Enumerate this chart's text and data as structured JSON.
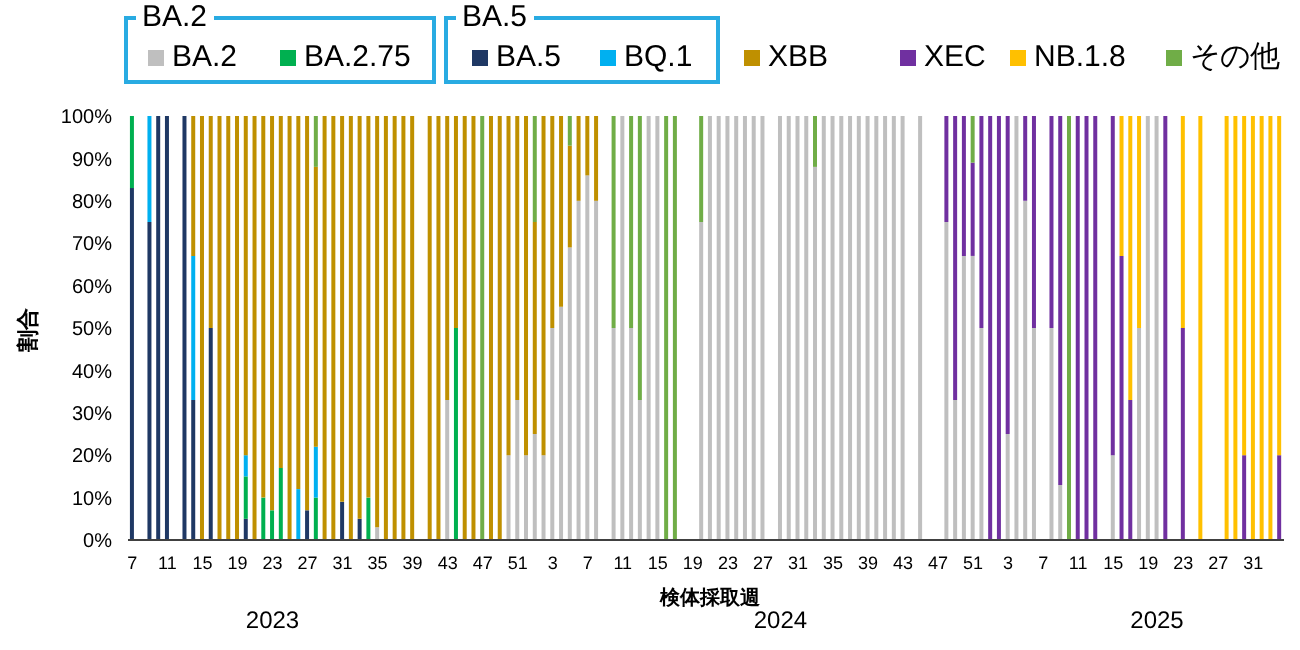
{
  "chart_data": {
    "type": "bar",
    "stacked": true,
    "legend": "top",
    "xlabel": "検体採取週",
    "ylabel": "割合",
    "annotations": [
      "BA.2",
      "BA.5",
      "2023",
      "2024",
      "2025"
    ],
    "categories": [
      "7",
      null,
      null,
      null,
      "11",
      null,
      null,
      null,
      "15",
      null,
      null,
      null,
      "19",
      null,
      null,
      null,
      "23",
      null,
      null,
      null,
      "27",
      null,
      null,
      null,
      "31",
      null,
      null,
      null,
      "35",
      null,
      null,
      null,
      "39",
      null,
      null,
      null,
      "43",
      null,
      null,
      null,
      "47",
      null,
      null,
      null,
      "51",
      null,
      null,
      null,
      "3",
      null,
      null,
      null,
      "7",
      null,
      null,
      null,
      "11",
      null,
      null,
      null,
      "15",
      null,
      null,
      null,
      "19",
      null,
      null,
      null,
      "23",
      null,
      null,
      null,
      "27",
      null,
      null,
      null,
      "31",
      null,
      null,
      null,
      "35",
      null,
      null,
      null,
      "39",
      null,
      null,
      null,
      "43",
      null,
      null,
      null,
      "47",
      null,
      null,
      null,
      "51",
      null,
      null,
      null,
      "3",
      null,
      null,
      null,
      "7",
      null,
      null,
      null,
      "11",
      null,
      null,
      null,
      "15",
      null,
      null,
      null,
      "19",
      null,
      null,
      null,
      "23",
      null,
      null,
      null,
      "27",
      null,
      null,
      null,
      "31",
      null,
      null,
      null
    ],
    "ylim": [
      0,
      100
    ],
    "yticks": [
      {
        "value": 0,
        "label": "0%"
      },
      {
        "value": 10,
        "label": "10%"
      },
      {
        "value": 20,
        "label": "20%"
      },
      {
        "value": 30,
        "label": "30%"
      },
      {
        "value": 40,
        "label": "40%"
      },
      {
        "value": 50,
        "label": "50%"
      },
      {
        "value": 60,
        "label": "60%"
      },
      {
        "value": 70,
        "label": "70%"
      },
      {
        "value": 80,
        "label": "80%"
      },
      {
        "value": 90,
        "label": "90%"
      },
      {
        "value": 100,
        "label": "100%"
      }
    ],
    "series": [
      {
        "name": "BA.5",
        "color": "#1f3864",
        "values": [
          83,
          null,
          75,
          100,
          100,
          null,
          100,
          33,
          null,
          50,
          null,
          null,
          null,
          5,
          null,
          null,
          null,
          null,
          null,
          null,
          7,
          null,
          null,
          null,
          9,
          null,
          5,
          null,
          null,
          null,
          null,
          null,
          null,
          null,
          null,
          null,
          null,
          null,
          null,
          null,
          null,
          null,
          null,
          null,
          null,
          null,
          null,
          null,
          null,
          null,
          null,
          null,
          null,
          null,
          null,
          null,
          null,
          null,
          null,
          null,
          null,
          null,
          null,
          null,
          null,
          null,
          null,
          null,
          null,
          null,
          null,
          null,
          null,
          null,
          null,
          null,
          null,
          null,
          null,
          null,
          null,
          null,
          null,
          null,
          null,
          null,
          null,
          null,
          null,
          null,
          null,
          null,
          null,
          null,
          null,
          null,
          null,
          null,
          null,
          null,
          null,
          null,
          null,
          null,
          null,
          null,
          null,
          null,
          null,
          null,
          null,
          null,
          null,
          null,
          null,
          null,
          null,
          null,
          null,
          null,
          null,
          null,
          null,
          null,
          null,
          null,
          null,
          null,
          null,
          null,
          null,
          null
        ]
      },
      {
        "name": "BA.2.75",
        "color": "#00b050",
        "values": [
          17,
          null,
          null,
          null,
          null,
          null,
          null,
          null,
          null,
          null,
          null,
          null,
          null,
          10,
          null,
          10,
          7,
          17,
          null,
          null,
          null,
          10,
          null,
          null,
          null,
          null,
          null,
          10,
          null,
          null,
          null,
          null,
          null,
          null,
          null,
          null,
          null,
          50,
          null,
          null,
          null,
          null,
          null,
          null,
          null,
          null,
          null,
          null,
          null,
          null,
          null,
          null,
          null,
          null,
          null,
          null,
          null,
          null,
          null,
          null,
          null,
          null,
          null,
          null,
          null,
          null,
          null,
          null,
          null,
          null,
          null,
          null,
          null,
          null,
          null,
          null,
          null,
          null,
          null,
          null,
          null,
          null,
          null,
          null,
          null,
          null,
          null,
          null,
          null,
          null,
          null,
          null,
          null,
          null,
          null,
          null,
          null,
          null,
          null,
          null,
          null,
          null,
          null,
          null,
          null,
          null,
          null,
          null,
          null,
          null,
          null,
          null,
          null,
          null,
          null,
          null,
          null,
          null,
          null,
          null,
          null,
          null,
          null,
          null,
          null,
          null,
          null,
          null,
          null,
          null,
          null,
          null
        ]
      },
      {
        "name": "BQ.1",
        "color": "#00b0f0",
        "values": [
          null,
          null,
          25,
          null,
          null,
          null,
          null,
          34,
          null,
          null,
          null,
          null,
          null,
          5,
          null,
          null,
          null,
          null,
          null,
          12,
          null,
          12,
          null,
          null,
          null,
          null,
          null,
          null,
          null,
          null,
          null,
          null,
          null,
          null,
          null,
          null,
          null,
          null,
          null,
          null,
          null,
          null,
          null,
          null,
          null,
          null,
          null,
          null,
          null,
          null,
          null,
          null,
          null,
          null,
          null,
          null,
          null,
          null,
          null,
          null,
          null,
          null,
          null,
          null,
          null,
          null,
          null,
          null,
          null,
          null,
          null,
          null,
          null,
          null,
          null,
          null,
          null,
          null,
          null,
          null,
          null,
          null,
          null,
          null,
          null,
          null,
          null,
          null,
          null,
          null,
          null,
          null,
          null,
          null,
          null,
          null,
          null,
          null,
          null,
          null,
          null,
          null,
          null,
          null,
          null,
          null,
          null,
          null,
          null,
          null,
          null,
          null,
          null,
          null,
          null,
          null,
          null,
          null,
          null,
          null,
          null,
          null,
          null,
          null,
          null,
          null,
          null,
          null,
          null,
          null,
          null,
          null
        ]
      },
      {
        "name": "BA.2",
        "color": "#bfbfbf",
        "values": [
          null,
          null,
          null,
          null,
          null,
          null,
          null,
          null,
          null,
          null,
          null,
          null,
          null,
          null,
          null,
          null,
          null,
          null,
          null,
          null,
          null,
          null,
          null,
          null,
          null,
          null,
          null,
          null,
          3,
          null,
          null,
          null,
          null,
          null,
          null,
          null,
          33,
          null,
          null,
          null,
          null,
          null,
          null,
          20,
          33,
          20,
          25,
          20,
          50,
          55,
          69,
          80,
          86,
          80,
          null,
          50,
          100,
          50,
          33,
          100,
          100,
          null,
          null,
          null,
          null,
          75,
          100,
          100,
          100,
          100,
          100,
          100,
          100,
          null,
          100,
          100,
          100,
          100,
          88,
          100,
          100,
          100,
          100,
          100,
          100,
          100,
          100,
          100,
          100,
          null,
          100,
          null,
          null,
          75,
          33,
          67,
          67,
          50,
          null,
          null,
          25,
          100,
          80,
          50,
          null,
          50,
          13,
          null,
          null,
          null,
          null,
          null,
          20,
          null,
          null,
          50,
          100,
          100,
          null,
          null,
          null,
          null,
          null,
          null,
          null,
          null,
          null,
          null,
          null,
          null,
          null,
          null
        ]
      },
      {
        "name": "XEC",
        "color": "#7030a0",
        "values": [
          null,
          null,
          null,
          null,
          null,
          null,
          null,
          null,
          null,
          null,
          null,
          null,
          null,
          null,
          null,
          null,
          null,
          null,
          null,
          null,
          null,
          null,
          null,
          null,
          null,
          null,
          null,
          null,
          null,
          null,
          null,
          null,
          null,
          null,
          null,
          null,
          null,
          null,
          null,
          null,
          null,
          null,
          null,
          null,
          null,
          null,
          null,
          null,
          null,
          null,
          null,
          null,
          null,
          null,
          null,
          null,
          null,
          null,
          null,
          null,
          null,
          null,
          null,
          null,
          null,
          null,
          null,
          null,
          null,
          null,
          null,
          null,
          null,
          null,
          null,
          null,
          null,
          null,
          null,
          null,
          null,
          null,
          null,
          null,
          null,
          null,
          null,
          null,
          null,
          null,
          null,
          null,
          null,
          25,
          67,
          33,
          22,
          50,
          100,
          100,
          75,
          null,
          20,
          50,
          null,
          50,
          87,
          null,
          100,
          100,
          100,
          null,
          80,
          67,
          33,
          null,
          null,
          null,
          100,
          null,
          50,
          null,
          null,
          null,
          null,
          null,
          null,
          20,
          null,
          null,
          null,
          20
        ]
      },
      {
        "name": "XBB",
        "color": "#bf9000",
        "values": [
          null,
          null,
          null,
          null,
          null,
          null,
          null,
          33,
          100,
          50,
          100,
          100,
          100,
          80,
          100,
          90,
          93,
          83,
          100,
          88,
          93,
          66,
          100,
          100,
          91,
          100,
          95,
          90,
          97,
          100,
          100,
          100,
          100,
          null,
          100,
          100,
          67,
          50,
          100,
          100,
          null,
          100,
          100,
          80,
          67,
          80,
          50,
          80,
          50,
          45,
          24,
          20,
          14,
          20,
          null,
          null,
          null,
          null,
          null,
          null,
          null,
          null,
          null,
          null,
          null,
          null,
          null,
          null,
          null,
          null,
          null,
          null,
          null,
          null,
          null,
          null,
          null,
          null,
          null,
          null,
          null,
          null,
          null,
          null,
          null,
          null,
          null,
          null,
          null,
          null,
          null,
          null,
          null,
          null,
          null,
          null,
          null,
          null,
          null,
          null,
          null,
          null,
          null,
          null,
          null,
          null,
          null,
          null,
          null,
          null,
          null,
          null,
          null,
          null,
          null,
          null,
          null,
          null,
          null,
          null,
          null,
          null,
          null,
          null,
          null,
          null,
          null,
          null,
          null,
          null,
          null,
          null
        ]
      },
      {
        "name": "NB.1.8",
        "color": "#ffc000",
        "values": [
          null,
          null,
          null,
          null,
          null,
          null,
          null,
          null,
          null,
          null,
          null,
          null,
          null,
          null,
          null,
          null,
          null,
          null,
          null,
          null,
          null,
          null,
          null,
          null,
          null,
          null,
          null,
          null,
          null,
          null,
          null,
          null,
          null,
          null,
          null,
          null,
          null,
          null,
          null,
          null,
          null,
          null,
          null,
          null,
          null,
          null,
          null,
          null,
          null,
          null,
          null,
          null,
          null,
          null,
          null,
          null,
          null,
          null,
          null,
          null,
          null,
          null,
          null,
          null,
          null,
          null,
          null,
          null,
          null,
          null,
          null,
          null,
          null,
          null,
          null,
          null,
          null,
          null,
          null,
          null,
          null,
          null,
          null,
          null,
          null,
          null,
          null,
          null,
          null,
          null,
          null,
          null,
          null,
          null,
          null,
          null,
          null,
          null,
          null,
          null,
          null,
          null,
          null,
          null,
          null,
          null,
          null,
          null,
          null,
          null,
          null,
          null,
          null,
          33,
          67,
          50,
          null,
          null,
          null,
          null,
          50,
          null,
          100,
          null,
          null,
          100,
          100,
          80,
          100,
          100,
          100,
          80
        ]
      },
      {
        "name": "その他",
        "color": "#70ad47",
        "values": [
          null,
          null,
          null,
          null,
          null,
          null,
          null,
          null,
          null,
          null,
          null,
          null,
          null,
          null,
          null,
          null,
          null,
          null,
          null,
          null,
          null,
          12,
          null,
          null,
          null,
          null,
          null,
          null,
          null,
          null,
          null,
          null,
          null,
          null,
          null,
          null,
          null,
          null,
          null,
          null,
          100,
          null,
          null,
          null,
          null,
          null,
          25,
          null,
          null,
          null,
          7,
          null,
          null,
          null,
          null,
          50,
          null,
          50,
          67,
          null,
          null,
          100,
          100,
          null,
          null,
          25,
          null,
          null,
          null,
          null,
          null,
          null,
          null,
          null,
          null,
          null,
          null,
          null,
          12,
          null,
          null,
          null,
          null,
          null,
          null,
          null,
          null,
          null,
          null,
          null,
          null,
          null,
          null,
          null,
          null,
          null,
          11,
          null,
          null,
          null,
          null,
          null,
          null,
          null,
          null,
          null,
          null,
          100,
          null,
          null,
          null,
          null,
          null,
          null,
          null,
          null,
          null,
          null,
          null,
          null,
          null,
          null,
          null,
          null,
          null,
          null,
          null,
          null,
          null,
          null,
          null,
          null
        ]
      }
    ]
  }
}
